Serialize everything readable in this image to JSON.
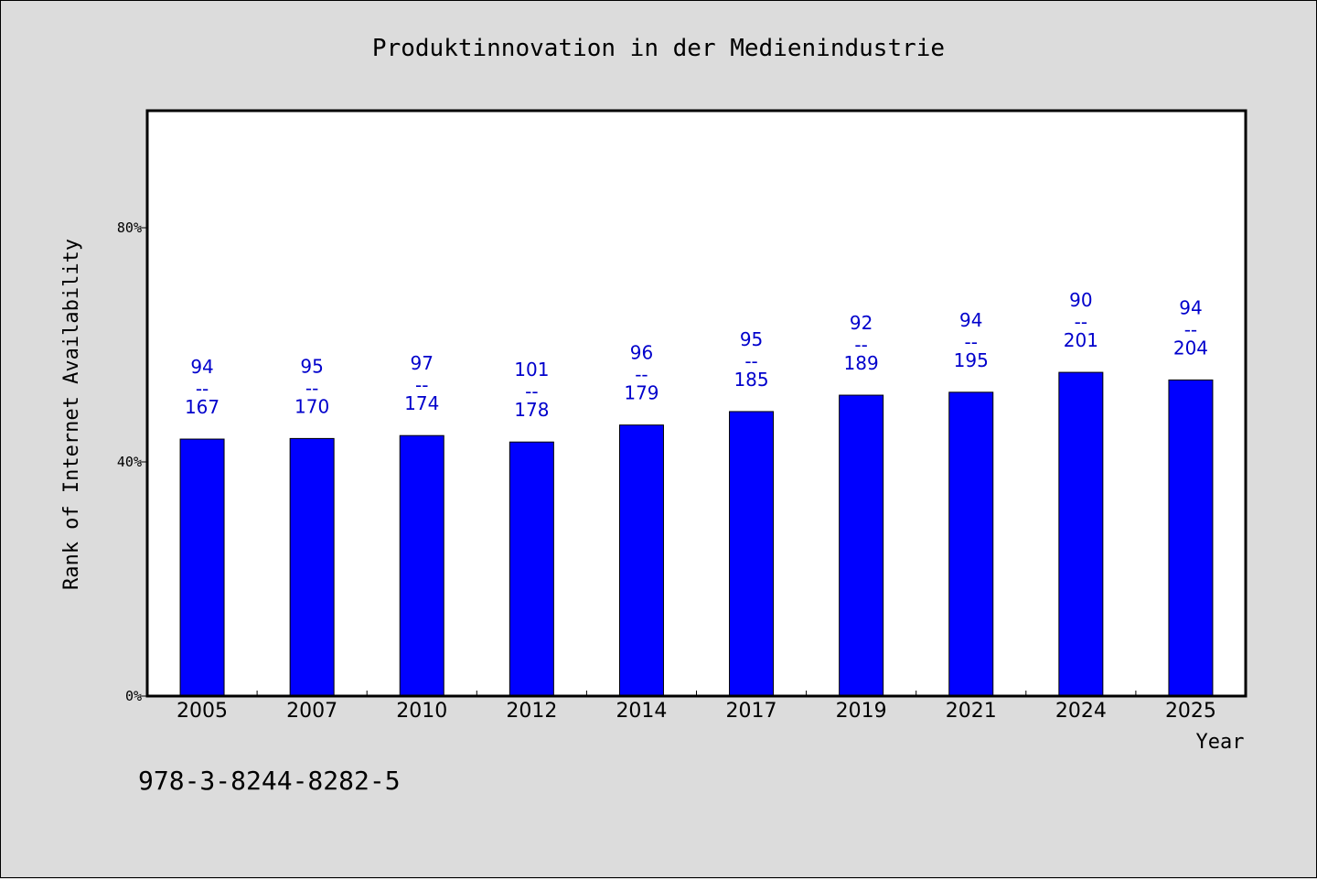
{
  "chart_data": {
    "type": "bar",
    "title": "Produktinnovation in der Medienindustrie",
    "xlabel": "Year",
    "ylabel": "Rank of Internet Availability",
    "categories": [
      "2005",
      "2007",
      "2010",
      "2012",
      "2014",
      "2017",
      "2019",
      "2021",
      "2024",
      "2025"
    ],
    "values": [
      0.439,
      0.44,
      0.445,
      0.434,
      0.463,
      0.486,
      0.514,
      0.519,
      0.553,
      0.54
    ],
    "numerators": [
      "94",
      "95",
      "97",
      "101",
      "96",
      "95",
      "92",
      "94",
      "90",
      "94"
    ],
    "denominators": [
      "167",
      "170",
      "174",
      "178",
      "179",
      "185",
      "189",
      "195",
      "201",
      "204"
    ],
    "separator": "--",
    "ylim": [
      0,
      1
    ],
    "yticks": [
      0,
      0.4,
      0.8
    ],
    "ytick_labels": [
      "0%",
      "40%",
      "80%"
    ],
    "grid": false,
    "colors": {
      "bar": "#0000ff",
      "label": "#0000cc",
      "background": "#dcdcdc",
      "plot": "#ffffff"
    }
  },
  "footer": {
    "isbn": "978-3-8244-8282-5"
  }
}
